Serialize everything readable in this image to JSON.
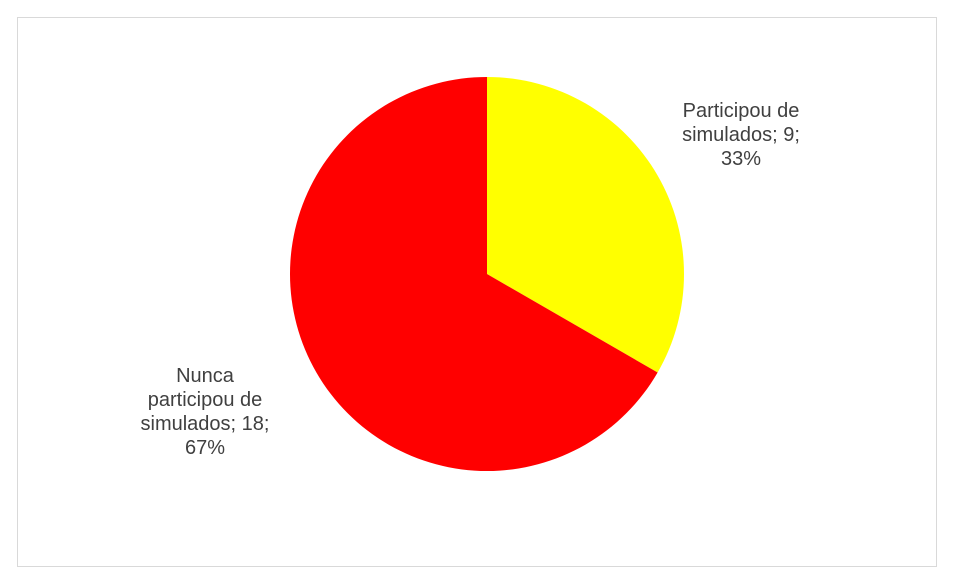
{
  "chart_data": {
    "type": "pie",
    "title": "",
    "categories": [
      "Participou de simulados",
      "Nunca participou de simulados"
    ],
    "values": [
      9,
      18
    ],
    "percentages": [
      33,
      67
    ],
    "colors": [
      "#ffff00",
      "#ff0000"
    ],
    "start_angle_deg": 0,
    "direction": "clockwise",
    "legend": "none",
    "data_labels": [
      {
        "lines": [
          "Participou de",
          "simulados; 9;",
          "33%"
        ]
      },
      {
        "lines": [
          "Nunca",
          "participou de",
          "simulados; 18;",
          "67%"
        ]
      }
    ]
  }
}
